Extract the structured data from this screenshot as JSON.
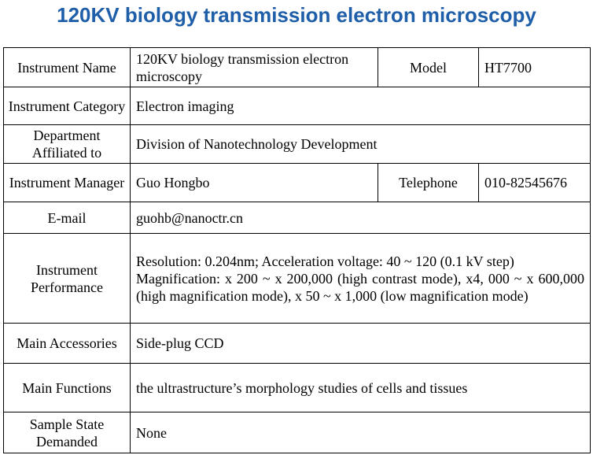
{
  "title": "120KV biology transmission electron microscopy",
  "table": {
    "rows": [
      [
        "Instrument Name",
        "120KV biology transmission electron microscopy",
        "Model",
        "HT7700"
      ],
      [
        "Instrument Category",
        "Electron imaging"
      ],
      [
        "Department Affiliated to",
        "Division of Nanotechnology Development"
      ],
      [
        "Instrument Manager",
        "Guo Hongbo",
        "Telephone",
        "010-82545676"
      ],
      [
        "E-mail",
        "guohb@nanoctr.cn"
      ],
      [
        "Instrument Performance",
        [
          "Resolution: 0.204nm; Acceleration voltage: 40 ~ 120 (0.1 kV step)",
          "Magnification: x 200 ~ x 200,000 (high contrast mode), x4, 000 ~ x 600,000 (high magnification mode), x 50 ~ x 1,000 (low magnification mode)"
        ]
      ],
      [
        "Main Accessories",
        "Side-plug CCD"
      ],
      [
        "Main Functions",
        "the ultrastructure’s morphology studies of cells and tissues"
      ],
      [
        "Sample State Demanded",
        "None"
      ]
    ]
  }
}
